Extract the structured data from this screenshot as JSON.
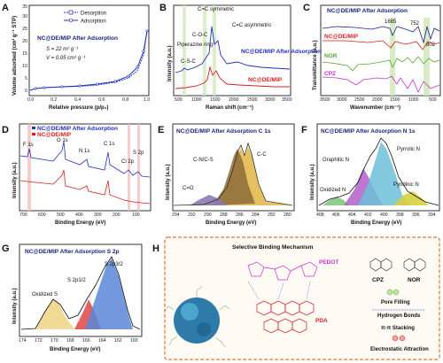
{
  "panels": {
    "A": {
      "letter": "A",
      "legend": [
        "Desorption",
        "Adsorption"
      ],
      "title": "NC@DE/MIP After Adsorption",
      "s_text": "S = 22 m² g⁻¹",
      "v_text": "V = 0.05 cm³ g⁻¹",
      "xlabel": "Relative pressure (p/p₀)",
      "ylabel": "Volume adsorbed (cm³ g⁻¹ STP)",
      "xticks": [
        "0.0",
        "0.2",
        "0.4",
        "0.6",
        "0.8",
        "1.0"
      ],
      "yticks": [
        "0",
        "5",
        "10",
        "15",
        "20",
        "25",
        "30",
        "35"
      ]
    },
    "B": {
      "letter": "B",
      "xlabel": "Raman shift (cm⁻¹)",
      "ylabel": "Intensity (a.u.)",
      "xticks": [
        "500",
        "1000",
        "1500",
        "2000",
        "2500",
        "3000",
        "3500"
      ],
      "series": [
        "NC@DE/MIP After Adsorption",
        "NC@DE/MIP"
      ],
      "annotations": [
        "C=C symmetric",
        "C-O-C",
        "Piperazine ring",
        "C-S-C",
        "C=C asymmetric"
      ]
    },
    "C": {
      "letter": "C",
      "xlabel": "Wavenumber (cm⁻¹)",
      "ylabel": "Transmittance (a.u.)",
      "xticks": [
        "3500",
        "3000",
        "2500",
        "2000",
        "1500",
        "1000",
        "500"
      ],
      "series": [
        "NC@DE/MIP After Adsorption",
        "NC@DE/MIP",
        "NOR",
        "CPZ"
      ],
      "peaks": [
        "1685",
        "752",
        "802"
      ]
    },
    "D": {
      "letter": "D",
      "xlabel": "Binding Energy (eV)",
      "ylabel": "Intensity (a.u.)",
      "xticks": [
        "700",
        "600",
        "500",
        "400",
        "300",
        "200",
        "100"
      ],
      "series": [
        "NC@DE/MIP After Adsorption",
        "NC@DE/MIP"
      ],
      "peaks": [
        "F 1s",
        "O 1s",
        "N 1s",
        "C 1s",
        "Cl 2p",
        "S 2p"
      ]
    },
    "E": {
      "letter": "E",
      "title": "NC@DE/MIP After Adsorption C 1s",
      "xlabel": "Binding Energy (eV)",
      "ylabel": "Intensity (a.u.)",
      "xticks": [
        "294",
        "292",
        "290",
        "288",
        "286",
        "284",
        "282",
        "280"
      ],
      "peaks": [
        "C-N/C-S",
        "C-C",
        "C=O"
      ]
    },
    "F": {
      "letter": "F",
      "title": "NC@DE/MIP After Adsorption N 1s",
      "xlabel": "Binding Energy (eV)",
      "ylabel": "Intensity (a.u.)",
      "xticks": [
        "408",
        "406",
        "404",
        "402",
        "400",
        "398",
        "396",
        "394"
      ],
      "peaks": [
        "Graphitic N",
        "Pyrrolic N",
        "Oxidized N",
        "Pyridinic N"
      ]
    },
    "G": {
      "letter": "G",
      "title": "NC@DE/MIP After Adsorption S 2p",
      "xlabel": "Binding Energy (eV)",
      "ylabel": "Intensity (a.u.)",
      "xticks": [
        "174",
        "172",
        "170",
        "168",
        "166",
        "164",
        "162",
        "160"
      ],
      "peaks": [
        "S 2p1/2",
        "S 2p3/2",
        "Oxidized S"
      ]
    },
    "H": {
      "letter": "H",
      "title": "Selective Binding Mechanism",
      "labels": [
        "PEDOT",
        "PDA",
        "CPZ",
        "NOR"
      ],
      "legend": [
        "Pore Filling",
        "Hydrogen Bonds",
        "π-π Stacking",
        "Electrostatic Attraction"
      ]
    }
  },
  "colors": {
    "blue": "#1f2fbf",
    "red": "#d81e1e",
    "green": "#58a82a",
    "magenta": "#c832c8",
    "navy": "#1a237e",
    "orange": "#c0661a",
    "highlight": "#cde7b8"
  }
}
